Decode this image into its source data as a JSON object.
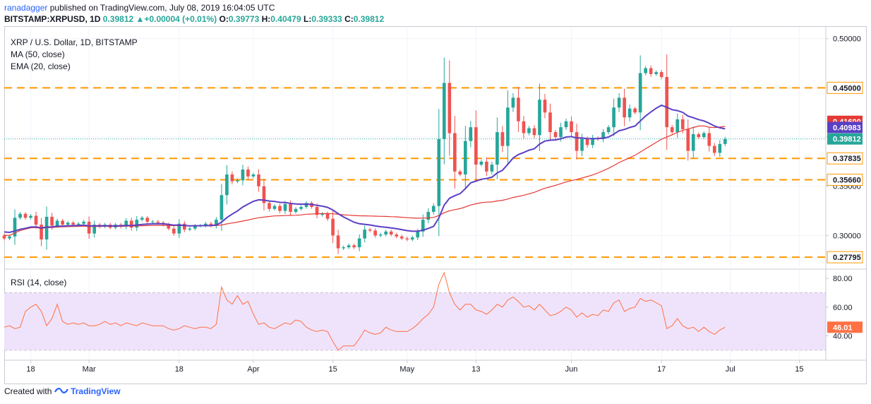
{
  "header": {
    "author": "ranadagger",
    "published": "published on TradingView.com, July 08, 2019 16:04:05 UTC",
    "symbol": "BITSTAMP:XRPUSD, 1D",
    "last": "0.39812",
    "change": "+0.00004 (+0.01%)",
    "o_label": "O:",
    "o": "0.39773",
    "h_label": "H:",
    "h": "0.40479",
    "l_label": "L:",
    "l": "0.39333",
    "c_label": "C:",
    "c": "0.39812"
  },
  "legend": {
    "title": "XRP / U.S. Dollar, 1D, BITSTAMP",
    "ma": "MA (50, close)",
    "ema": "EMA (20, close)",
    "rsi": "RSI (14, close)"
  },
  "footer": {
    "created_with": "Created with",
    "brand": "TradingView"
  },
  "colors": {
    "up": "#26a69a",
    "down": "#ef5350",
    "ma": "#e53935",
    "ema": "#5b3fc4",
    "level": "#ff9800",
    "rsi": "#ff7043",
    "rsi_band": "#efe3fb"
  },
  "chart_data": [
    {
      "type": "candlestick",
      "title": "XRP / U.S. Dollar, 1D, BITSTAMP",
      "x_tick_labels": [
        "18",
        "Mar",
        "18",
        "Apr",
        "15",
        "May",
        "13",
        "Jun",
        "17",
        "Jul",
        "15"
      ],
      "x_tick_days": [
        18,
        29,
        46,
        60,
        75,
        89,
        102,
        120,
        137,
        150,
        163
      ],
      "y_ticks": [
        0.3,
        0.35,
        0.4,
        0.45,
        0.5
      ],
      "y_tick_labels": [
        "0.30000",
        "0.35000",
        "0.40000",
        "0.45000",
        "0.50000"
      ],
      "ylim": [
        0.268,
        0.512
      ],
      "xlim_days": [
        13,
        168
      ],
      "levels": [
        {
          "value": 0.45,
          "label": "0.45000"
        },
        {
          "value": 0.37835,
          "label": "0.37835"
        },
        {
          "value": 0.3566,
          "label": "0.35660"
        },
        {
          "value": 0.27795,
          "label": "0.27795"
        }
      ],
      "price_labels": [
        {
          "value": 0.416,
          "label": "0.41600",
          "series": "MA (50, close)"
        },
        {
          "value": 0.40983,
          "label": "0.40983",
          "series": "EMA (20, close)"
        },
        {
          "value": 0.39812,
          "label": "0.39812",
          "series": "Last"
        }
      ],
      "close": [
        0.306,
        0.3,
        0.298,
        0.3,
        0.297,
        0.299,
        0.318,
        0.322,
        0.318,
        0.32,
        0.311,
        0.296,
        0.319,
        0.31,
        0.315,
        0.311,
        0.313,
        0.311,
        0.312,
        0.314,
        0.302,
        0.311,
        0.309,
        0.311,
        0.308,
        0.311,
        0.309,
        0.315,
        0.308,
        0.316,
        0.318,
        0.314,
        0.314,
        0.313,
        0.311,
        0.307,
        0.302,
        0.312,
        0.306,
        0.307,
        0.31,
        0.31,
        0.312,
        0.31,
        0.316,
        0.341,
        0.362,
        0.355,
        0.356,
        0.367,
        0.36,
        0.362,
        0.35,
        0.333,
        0.327,
        0.33,
        0.325,
        0.332,
        0.324,
        0.327,
        0.329,
        0.333,
        0.329,
        0.321,
        0.322,
        0.317,
        0.3,
        0.287,
        0.288,
        0.29,
        0.288,
        0.297,
        0.306,
        0.305,
        0.3,
        0.301,
        0.304,
        0.301,
        0.299,
        0.297,
        0.296,
        0.298,
        0.304,
        0.316,
        0.324,
        0.33,
        0.398,
        0.455,
        0.404,
        0.365,
        0.362,
        0.396,
        0.41,
        0.372,
        0.375,
        0.365,
        0.372,
        0.405,
        0.391,
        0.43,
        0.44,
        0.416,
        0.404,
        0.409,
        0.402,
        0.438,
        0.425,
        0.405,
        0.4,
        0.41,
        0.416,
        0.405,
        0.386,
        0.398,
        0.392,
        0.399,
        0.398,
        0.405,
        0.41,
        0.43,
        0.44,
        0.42,
        0.429,
        0.425,
        0.465,
        0.47,
        0.464,
        0.466,
        0.461,
        0.41,
        0.405,
        0.418,
        0.408,
        0.386,
        0.403,
        0.4,
        0.404,
        0.391,
        0.384,
        0.393,
        0.398
      ],
      "rsi": {
        "title": "RSI (14, close)",
        "ylim": [
          23,
          86
        ],
        "y_ticks": [
          40,
          60,
          80
        ],
        "y_tick_labels": [
          "40.00",
          "60.00",
          "80.00"
        ],
        "band": [
          30,
          70
        ],
        "last_label": "46.01",
        "values": [
          45,
          46,
          45,
          47,
          46,
          47,
          45,
          46,
          57,
          60,
          62,
          57,
          47,
          52,
          62,
          50,
          48,
          49,
          48,
          49,
          47,
          47,
          48,
          50,
          48,
          49,
          47,
          49,
          48,
          47,
          49,
          48,
          47,
          47,
          47,
          45,
          44,
          45,
          47,
          46,
          45,
          46,
          46,
          45,
          48,
          74,
          65,
          62,
          68,
          62,
          64,
          55,
          48,
          49,
          46,
          45,
          47,
          49,
          48,
          51,
          50,
          46,
          44,
          43,
          44,
          43,
          36,
          30,
          33,
          33,
          33,
          38,
          44,
          42,
          41,
          42,
          46,
          44,
          43,
          43,
          43,
          45,
          48,
          52,
          55,
          60,
          76,
          84,
          70,
          62,
          58,
          62,
          62,
          58,
          57,
          55,
          58,
          62,
          60,
          65,
          67,
          64,
          60,
          61,
          58,
          62,
          58,
          54,
          55,
          57,
          60,
          58,
          53,
          56,
          53,
          55,
          54,
          58,
          57,
          63,
          65,
          57,
          59,
          60,
          66,
          64,
          65,
          63,
          61,
          45,
          47,
          52,
          47,
          45,
          46,
          43,
          46,
          43,
          41,
          44,
          46
        ]
      }
    }
  ]
}
